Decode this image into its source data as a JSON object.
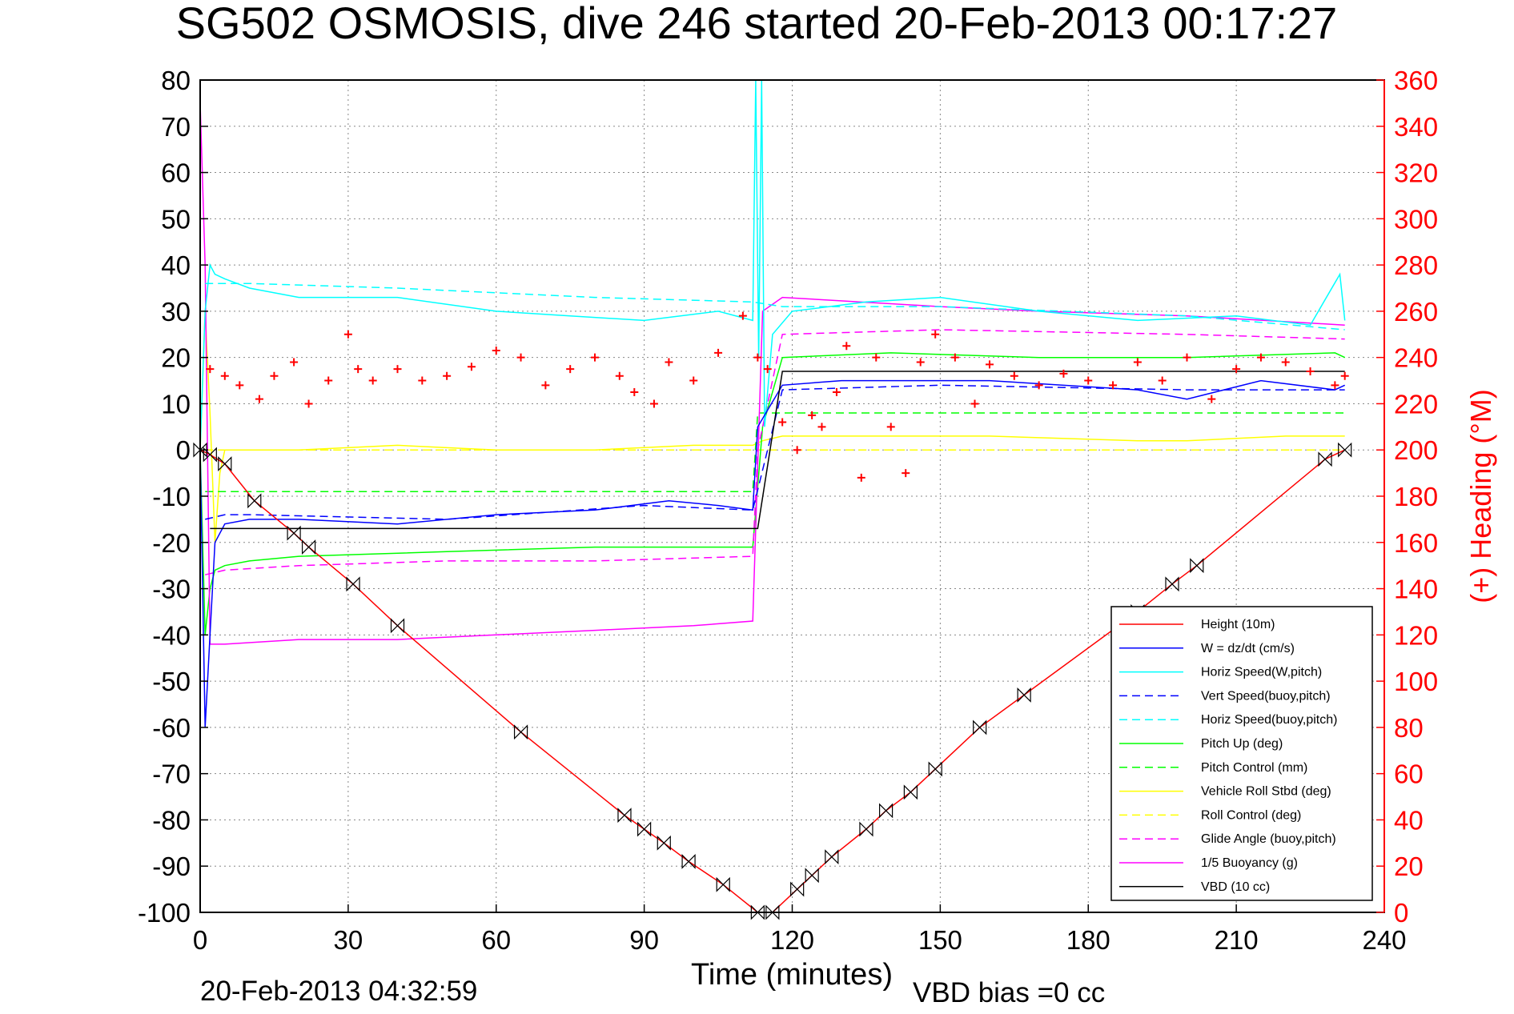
{
  "chart_data": {
    "type": "line",
    "title": "SG502 OSMOSIS, dive 246 started 20-Feb-2013 00:17:27",
    "xlabel": "Time (minutes)",
    "ylabel": "",
    "y2label": "(+) Heading (°M)",
    "footer_left": "20-Feb-2013 04:32:59",
    "footer_right": "VBD bias =0 cc",
    "xlim": [
      0,
      240
    ],
    "ylim": [
      -100,
      80
    ],
    "y2lim": [
      0,
      360
    ],
    "xticks": [
      "0",
      "30",
      "60",
      "90",
      "120",
      "150",
      "180",
      "210",
      "240"
    ],
    "yticks": [
      "80",
      "70",
      "60",
      "50",
      "40",
      "30",
      "20",
      "10",
      "0",
      "-10",
      "-20",
      "-30",
      "-40",
      "-50",
      "-60",
      "-70",
      "-80",
      "-90",
      "-100"
    ],
    "y2ticks": [
      "360",
      "340",
      "320",
      "300",
      "280",
      "260",
      "240",
      "220",
      "200",
      "180",
      "160",
      "140",
      "120",
      "100",
      "80",
      "60",
      "40",
      "20",
      "0"
    ],
    "grid": true,
    "legend_position": "bottom-right",
    "colors": {
      "height": "#ff0000",
      "w": "#0000ff",
      "horiz_w": "#00ffff",
      "vert_buoy": "#0000ff",
      "horiz_buoy": "#00ffff",
      "pitch": "#00ff00",
      "pitch_ctrl": "#00ff00",
      "roll": "#ffff00",
      "roll_ctrl": "#ffff00",
      "glide": "#ff00ff",
      "buoyancy": "#ff00ff",
      "vbd": "#000000",
      "heading": "#ff0000"
    },
    "series": [
      {
        "key": "height",
        "name": "Height (10m)",
        "style": "solid",
        "marker": "bowtie",
        "x": [
          0,
          2,
          5,
          11,
          19,
          22,
          31,
          40,
          65,
          86,
          90,
          94,
          99,
          106,
          113,
          116,
          121,
          124,
          128,
          135,
          139,
          144,
          149,
          158,
          167,
          190,
          197,
          202,
          228,
          232
        ],
        "y": [
          0,
          -1,
          -3,
          -11,
          -18,
          -21,
          -29,
          -38,
          -61,
          -79,
          -82,
          -85,
          -89,
          -94,
          -100,
          -100,
          -95,
          -92,
          -88,
          -82,
          -78,
          -74,
          -69,
          -60,
          -53,
          -35,
          -29,
          -25,
          -2,
          0
        ]
      },
      {
        "key": "w",
        "name": "W = dz/dt (cm/s)",
        "style": "solid",
        "x": [
          0,
          1,
          2,
          3,
          5,
          10,
          20,
          40,
          60,
          80,
          95,
          105,
          112,
          113,
          118,
          130,
          160,
          190,
          200,
          215,
          230,
          232
        ],
        "y": [
          0,
          -60,
          -40,
          -20,
          -16,
          -15,
          -15,
          -16,
          -14,
          -13,
          -11,
          -12,
          -13,
          5,
          14,
          15,
          15,
          13,
          11,
          15,
          13,
          14
        ]
      },
      {
        "key": "horiz_w",
        "name": "Horiz Speed(W,pitch)",
        "style": "solid",
        "x": [
          0,
          1,
          2,
          3,
          5,
          10,
          20,
          40,
          60,
          75,
          90,
          105,
          112,
          112.6,
          113.2,
          113.8,
          114.4,
          116,
          120,
          135,
          150,
          170,
          190,
          210,
          225,
          231,
          232
        ],
        "y": [
          0,
          30,
          40,
          38,
          37,
          35,
          33,
          33,
          30,
          29,
          28,
          30,
          28,
          80,
          20,
          80,
          5,
          25,
          30,
          32,
          33,
          30,
          28,
          29,
          27,
          38,
          28
        ]
      },
      {
        "key": "vert_buoy",
        "name": "Vert Speed(buoy,pitch)",
        "style": "dash",
        "x": [
          1,
          5,
          10,
          50,
          90,
          112,
          118,
          150,
          200,
          232
        ],
        "y": [
          -15,
          -14,
          -14,
          -15,
          -12,
          -13,
          13,
          14,
          13,
          13
        ]
      },
      {
        "key": "horiz_buoy",
        "name": "Horiz Speed(buoy,pitch)",
        "style": "dash",
        "x": [
          1,
          5,
          10,
          40,
          80,
          112,
          118,
          150,
          200,
          232
        ],
        "y": [
          36,
          36,
          36,
          35,
          33,
          32,
          31,
          31,
          29,
          26
        ]
      },
      {
        "key": "pitch",
        "name": "Pitch Up (deg)",
        "style": "solid",
        "x": [
          0,
          1,
          2,
          3,
          5,
          10,
          20,
          50,
          80,
          105,
          112,
          114,
          118,
          140,
          170,
          200,
          230,
          232
        ],
        "y": [
          0,
          -40,
          -30,
          -26,
          -25,
          -24,
          -23,
          -22,
          -21,
          -21,
          -21,
          5,
          20,
          21,
          20,
          20,
          21,
          20
        ]
      },
      {
        "key": "pitch_ctrl",
        "name": "Pitch Control (mm)",
        "style": "dash",
        "x": [
          1,
          5,
          112,
          113,
          118,
          232
        ],
        "y": [
          -9,
          -9,
          -9,
          8,
          8,
          8
        ]
      },
      {
        "key": "roll",
        "name": "Vehicle Roll Stbd (deg)",
        "style": "solid",
        "x": [
          0,
          1,
          2,
          3,
          4,
          5,
          10,
          20,
          40,
          60,
          80,
          100,
          112,
          114,
          118,
          130,
          160,
          190,
          200,
          220,
          232
        ],
        "y": [
          0,
          30,
          8,
          -20,
          -5,
          0,
          0,
          0,
          1,
          0,
          0,
          1,
          1,
          2,
          3,
          3,
          3,
          2,
          2,
          3,
          3
        ]
      },
      {
        "key": "roll_ctrl",
        "name": "Roll Control (deg)",
        "style": "dash",
        "x": [
          1,
          4,
          5,
          112,
          113,
          232
        ],
        "y": [
          0,
          0,
          0,
          0,
          0,
          0
        ]
      },
      {
        "key": "glide",
        "name": "Glide Angle (buoy,pitch)",
        "style": "dash",
        "x": [
          1,
          5,
          20,
          50,
          80,
          112,
          113,
          118,
          150,
          200,
          232
        ],
        "y": [
          -27,
          -26,
          -25,
          -24,
          -24,
          -23,
          0,
          25,
          26,
          25,
          24
        ]
      },
      {
        "key": "buoyancy",
        "name": "1/5 Buoyancy (g)",
        "style": "solid",
        "x": [
          0,
          1,
          2,
          5,
          20,
          40,
          60,
          80,
          100,
          112,
          114,
          118,
          150,
          170,
          200,
          232
        ],
        "y": [
          75,
          40,
          -42,
          -42,
          -41,
          -41,
          -40,
          -39,
          -38,
          -37,
          30,
          33,
          31,
          30,
          29,
          27
        ]
      },
      {
        "key": "vbd",
        "name": "VBD (10 cc)",
        "style": "solid",
        "x": [
          2,
          5,
          112,
          113,
          118,
          232
        ],
        "y": [
          -17,
          -17,
          -17,
          -17,
          17,
          17
        ]
      },
      {
        "key": "heading",
        "name": "(+) Heading (°M)",
        "style": "marker",
        "axis": "right",
        "x": [
          2,
          5,
          8,
          12,
          15,
          19,
          22,
          26,
          30,
          32,
          35,
          40,
          45,
          50,
          55,
          60,
          65,
          70,
          75,
          80,
          85,
          88,
          92,
          95,
          100,
          105,
          110,
          113,
          115,
          118,
          121,
          124,
          126,
          129,
          131,
          134,
          137,
          140,
          143,
          146,
          149,
          153,
          157,
          160,
          165,
          170,
          175,
          180,
          185,
          190,
          195,
          200,
          205,
          210,
          215,
          220,
          225,
          230,
          232
        ],
        "y": [
          235,
          232,
          228,
          222,
          232,
          238,
          220,
          230,
          250,
          235,
          230,
          235,
          230,
          232,
          236,
          243,
          240,
          228,
          235,
          240,
          232,
          225,
          220,
          238,
          230,
          242,
          258,
          240,
          235,
          212,
          200,
          215,
          210,
          225,
          245,
          188,
          240,
          210,
          190,
          238,
          250,
          240,
          220,
          237,
          232,
          228,
          233,
          230,
          228,
          238,
          230,
          240,
          222,
          235,
          240,
          238,
          234,
          228,
          232
        ]
      }
    ],
    "legend": [
      "Height (10m)",
      "W = dz/dt (cm/s)",
      "Horiz Speed(W,pitch)",
      "Vert Speed(buoy,pitch)",
      "Horiz Speed(buoy,pitch)",
      "Pitch Up (deg)",
      "Pitch Control (mm)",
      "Vehicle Roll Stbd (deg)",
      "Roll Control (deg)",
      "Glide Angle (buoy,pitch)",
      "1/5 Buoyancy (g)",
      "VBD (10 cc)"
    ]
  }
}
